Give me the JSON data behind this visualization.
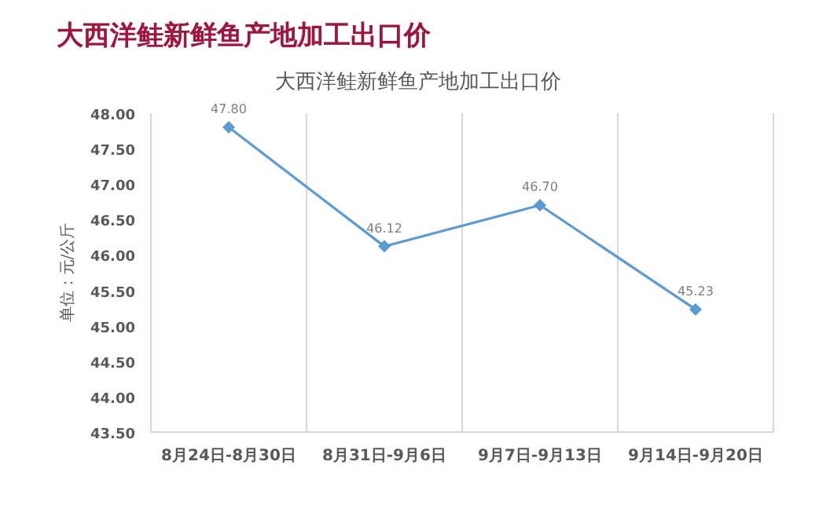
{
  "chart_data": {
    "type": "line",
    "title": "大西洋鲑新鲜鱼产地加工出口价",
    "subtitle": "大西洋鲑新鲜鱼产地加工出口价",
    "ylabel": "单位：元/公斤",
    "categories": [
      "8月24日-8月30日",
      "8月31日-9月6日",
      "9月7日-9月13日",
      "9月14日-9月20日"
    ],
    "series": [
      {
        "color": "#5b9bd5",
        "values": [
          47.8,
          46.12,
          46.7,
          45.23
        ],
        "value_labels": [
          "47.80",
          "46.12",
          "46.70",
          "45.23"
        ]
      }
    ],
    "ylim": [
      43.5,
      48.0
    ],
    "yticks": [
      {
        "value": 43.5,
        "label": "43.50"
      },
      {
        "value": 44,
        "label": "44.00"
      },
      {
        "value": 44.5,
        "label": "44.50"
      },
      {
        "value": 45,
        "label": "45.00"
      },
      {
        "value": 45.5,
        "label": "45.50"
      },
      {
        "value": 46,
        "label": "46.00"
      },
      {
        "value": 46.5,
        "label": "46.50"
      },
      {
        "value": 47,
        "label": "47.00"
      },
      {
        "value": 47.5,
        "label": "47.50"
      },
      {
        "value": 48,
        "label": "48.00"
      }
    ],
    "grid": "x",
    "marker": "diamond",
    "line_style": "solid"
  }
}
